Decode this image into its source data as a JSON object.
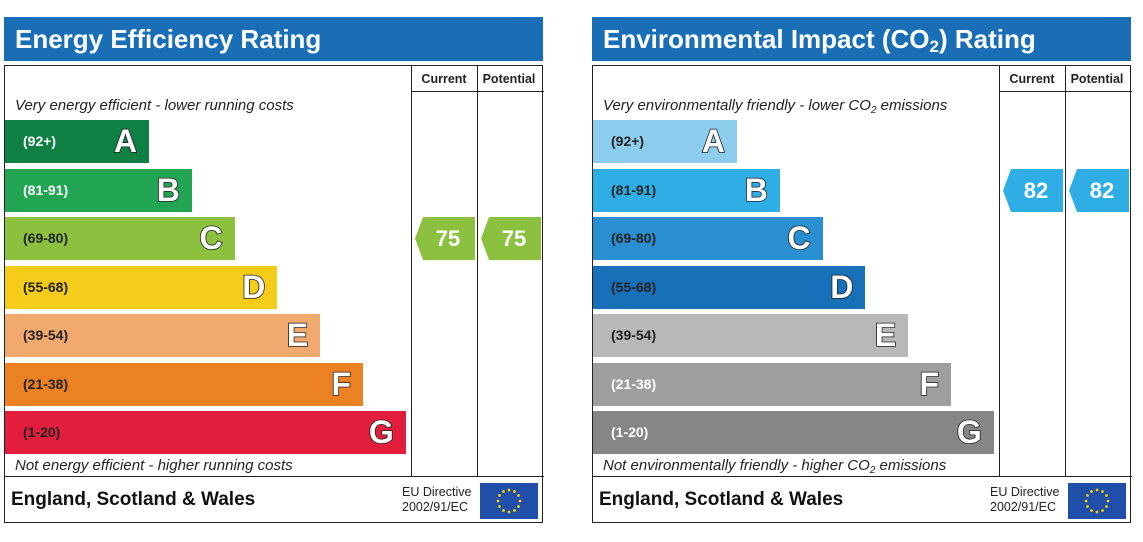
{
  "chart_data": [
    {
      "type": "bar",
      "title": "Energy Efficiency Rating",
      "columns": [
        "Current",
        "Potential"
      ],
      "top_note": "Very energy efficient - lower running costs",
      "bottom_note": "Not energy efficient - higher running costs",
      "bands": [
        {
          "letter": "A",
          "range": "(92+)",
          "color": "#0e8043",
          "text_color": "#ffffff"
        },
        {
          "letter": "B",
          "range": "(81-91)",
          "color": "#21a553",
          "text_color": "#ffffff"
        },
        {
          "letter": "C",
          "range": "(69-80)",
          "color": "#8cc140",
          "text_color": "#222222"
        },
        {
          "letter": "D",
          "range": "(55-68)",
          "color": "#f6cc1a",
          "text_color": "#222222"
        },
        {
          "letter": "E",
          "range": "(39-54)",
          "color": "#f2a96d",
          "text_color": "#222222"
        },
        {
          "letter": "F",
          "range": "(21-38)",
          "color": "#ec8124",
          "text_color": "#222222"
        },
        {
          "letter": "G",
          "range": "(1-20)",
          "color": "#e31d3c",
          "text_color": "#222222"
        }
      ],
      "current": {
        "value": 75,
        "band": "C",
        "color": "#8cc140"
      },
      "potential": {
        "value": 75,
        "band": "C",
        "color": "#8cc140"
      },
      "footer_region": "England, Scotland & Wales",
      "directive_line1": "EU Directive",
      "directive_line2": "2002/91/EC"
    },
    {
      "type": "bar",
      "title_main": "Environmental Impact (CO",
      "title_sub": "2",
      "title_end": ") Rating",
      "columns": [
        "Current",
        "Potential"
      ],
      "top_note_main": "Very environmentally friendly - lower CO",
      "top_note_sub": "2",
      "top_note_end": " emissions",
      "bottom_note_main": "Not environmentally friendly - higher CO",
      "bottom_note_sub": "2",
      "bottom_note_end": " emissions",
      "bands": [
        {
          "letter": "A",
          "range": "(92+)",
          "color": "#8ccdee",
          "text_color": "#222222"
        },
        {
          "letter": "B",
          "range": "(81-91)",
          "color": "#2faee6",
          "text_color": "#222222"
        },
        {
          "letter": "C",
          "range": "(69-80)",
          "color": "#2a8fd0",
          "text_color": "#222222"
        },
        {
          "letter": "D",
          "range": "(55-68)",
          "color": "#1870b8",
          "text_color": "#222222"
        },
        {
          "letter": "E",
          "range": "(39-54)",
          "color": "#b8b8b8",
          "text_color": "#222222"
        },
        {
          "letter": "F",
          "range": "(21-38)",
          "color": "#9e9e9e",
          "text_color": "#ffffff"
        },
        {
          "letter": "G",
          "range": "(1-20)",
          "color": "#868686",
          "text_color": "#ffffff"
        }
      ],
      "current": {
        "value": 82,
        "band": "B",
        "color": "#2faee6"
      },
      "potential": {
        "value": 82,
        "band": "B",
        "color": "#2faee6"
      },
      "footer_region": "England, Scotland & Wales",
      "directive_line1": "EU Directive",
      "directive_line2": "2002/91/EC"
    }
  ]
}
